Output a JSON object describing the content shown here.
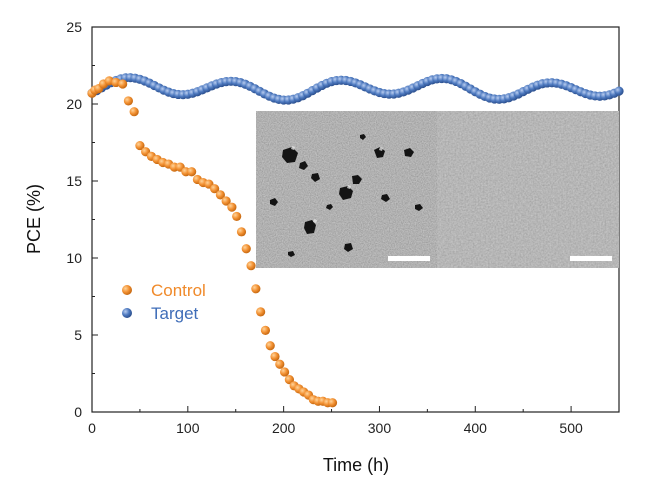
{
  "chart_data": {
    "type": "scatter",
    "title": "",
    "xlabel": "Time (h)",
    "ylabel": "PCE (%)",
    "xlim": [
      0,
      550
    ],
    "ylim": [
      0,
      25
    ],
    "xticks": [
      0,
      100,
      200,
      300,
      400,
      500
    ],
    "yticks": [
      0,
      5,
      10,
      15,
      20,
      25
    ],
    "grid": false,
    "legend_position": "lower-left",
    "series": [
      {
        "name": "Control",
        "color": "#F39234",
        "x": [
          0,
          3,
          7,
          12,
          18,
          25,
          32,
          38,
          44,
          50,
          56,
          62,
          68,
          74,
          80,
          86,
          92,
          98,
          104,
          110,
          116,
          122,
          128,
          134,
          140,
          146,
          151,
          156,
          161,
          166,
          171,
          176,
          181,
          186,
          191,
          196,
          201,
          206,
          211,
          216,
          221,
          226,
          231,
          236,
          241,
          246,
          251
        ],
        "y": [
          20.7,
          20.9,
          21.0,
          21.3,
          21.5,
          21.4,
          21.3,
          20.2,
          19.5,
          17.3,
          16.9,
          16.6,
          16.4,
          16.2,
          16.1,
          15.9,
          15.9,
          15.6,
          15.6,
          15.1,
          14.9,
          14.8,
          14.5,
          14.1,
          13.7,
          13.3,
          12.7,
          11.7,
          10.6,
          9.5,
          8.0,
          6.5,
          5.3,
          4.3,
          3.6,
          3.1,
          2.6,
          2.1,
          1.7,
          1.5,
          1.3,
          1.1,
          0.8,
          0.7,
          0.7,
          0.6,
          0.6
        ]
      },
      {
        "name": "Target",
        "color": "#4E7AC0",
        "model": "21.0 + 0.55*sin(2*pi*(t-10)/110) + 0.2*sin(2*pi*t/260)",
        "x_start": 0,
        "x_end": 550,
        "x_step": 5,
        "y_range": [
          20.2,
          21.6
        ]
      }
    ],
    "inset": {
      "content": "SEM images (Control left, Target right) with white scale bars",
      "scale_bar_label": ""
    }
  }
}
